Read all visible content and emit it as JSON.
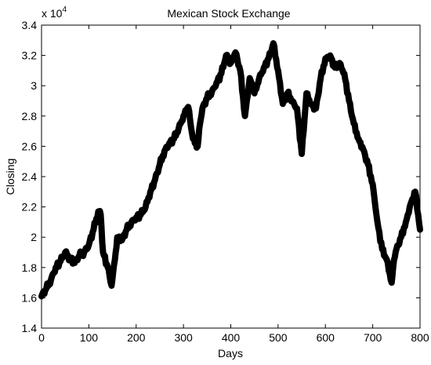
{
  "chart_data": {
    "type": "line",
    "title": "Mexican Stock Exchange",
    "xlabel": "Days",
    "ylabel": "Closing",
    "y_multiplier": "x 10",
    "y_multiplier_exponent": "4",
    "xlim": [
      0,
      800
    ],
    "ylim": [
      1.4,
      3.4
    ],
    "xticks": [
      0,
      100,
      200,
      300,
      400,
      500,
      600,
      700,
      800
    ],
    "yticks": [
      1.4,
      1.6,
      1.8,
      2.0,
      2.2,
      2.4,
      2.6,
      2.8,
      3.0,
      3.2,
      3.4
    ],
    "ytick_labels": [
      "1.4",
      "1.6",
      "1.8",
      "2",
      "2.2",
      "2.4",
      "2.6",
      "2.8",
      "3",
      "3.2",
      "3.4"
    ],
    "grid": false,
    "line_color": "#000000",
    "series": [
      {
        "x": [
          0,
          10,
          20,
          30,
          40,
          50,
          60,
          70,
          80,
          90,
          100,
          110,
          120,
          125,
          130,
          140,
          148,
          155,
          160,
          170,
          180,
          190,
          200,
          210,
          220,
          230,
          240,
          250,
          260,
          270,
          280,
          290,
          300,
          310,
          320,
          330,
          335,
          340,
          350,
          360,
          370,
          380,
          390,
          400,
          410,
          420,
          430,
          440,
          450,
          460,
          470,
          480,
          490,
          500,
          510,
          520,
          530,
          540,
          550,
          560,
          570,
          580,
          590,
          600,
          610,
          620,
          630,
          640,
          650,
          660,
          670,
          680,
          690,
          700,
          710,
          720,
          730,
          740,
          745,
          750,
          760,
          770,
          780,
          790,
          800
        ],
        "y": [
          1.61,
          1.66,
          1.72,
          1.8,
          1.84,
          1.9,
          1.86,
          1.83,
          1.88,
          1.9,
          1.95,
          2.05,
          2.17,
          2.15,
          1.9,
          1.8,
          1.68,
          1.85,
          2.0,
          1.98,
          2.05,
          2.1,
          2.13,
          2.15,
          2.2,
          2.3,
          2.38,
          2.48,
          2.57,
          2.62,
          2.65,
          2.72,
          2.8,
          2.86,
          2.65,
          2.6,
          2.75,
          2.85,
          2.92,
          2.96,
          3.02,
          3.08,
          3.2,
          3.15,
          3.22,
          3.1,
          2.8,
          3.05,
          2.95,
          3.05,
          3.12,
          3.18,
          3.28,
          3.1,
          2.88,
          2.95,
          2.9,
          2.85,
          2.55,
          2.95,
          2.88,
          2.85,
          3.05,
          3.18,
          3.2,
          3.12,
          3.15,
          3.08,
          2.9,
          2.75,
          2.65,
          2.58,
          2.48,
          2.35,
          2.1,
          1.92,
          1.85,
          1.7,
          1.85,
          1.92,
          2.0,
          2.1,
          2.22,
          2.3,
          2.05
        ]
      }
    ]
  }
}
